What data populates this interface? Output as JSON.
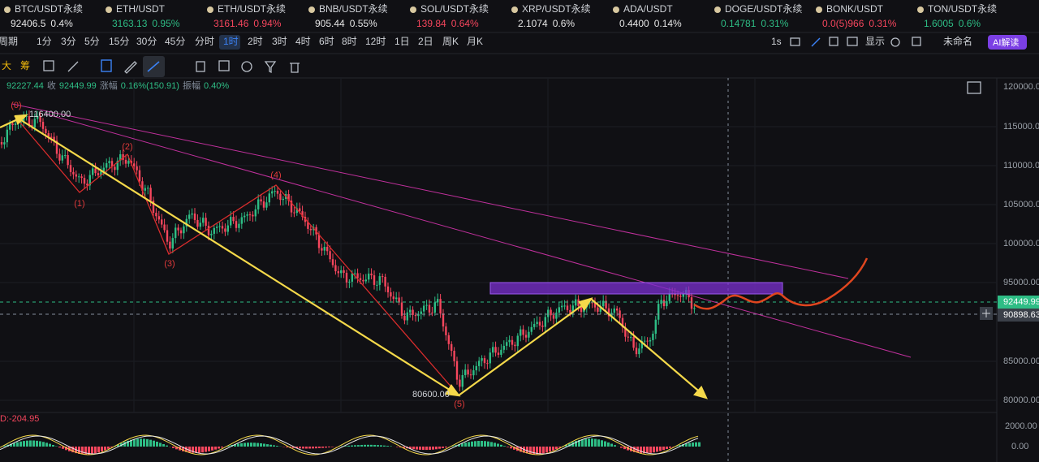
{
  "tickers": [
    {
      "symbol": "BTC/USDT永续",
      "price": "92406.5",
      "change": "0.4%",
      "color": "#e6e6e6"
    },
    {
      "symbol": "ETH/USDT",
      "price": "3163.13",
      "change": "0.95%",
      "color": "#2ebd85"
    },
    {
      "symbol": "ETH/USDT永续",
      "price": "3161.46",
      "change": "0.94%",
      "color": "#f6465d"
    },
    {
      "symbol": "BNB/USDT永续",
      "price": "905.44",
      "change": "0.55%",
      "color": "#e6e6e6"
    },
    {
      "symbol": "SOL/USDT永续",
      "price": "139.84",
      "change": "0.64%",
      "color": "#f6465d"
    },
    {
      "symbol": "XRP/USDT永续",
      "price": "2.1074",
      "change": "0.6%",
      "color": "#e6e6e6"
    },
    {
      "symbol": "ADA/USDT",
      "price": "0.4400",
      "change": "0.14%",
      "color": "#e6e6e6"
    },
    {
      "symbol": "DOGE/USDT永续",
      "price": "0.14781",
      "change": "0.31%",
      "color": "#2ebd85"
    },
    {
      "symbol": "BONK/USDT",
      "price": "0.0(5)966",
      "change": "0.31%",
      "color": "#f6465d"
    },
    {
      "symbol": "TON/USDT永续",
      "price": "1.6005",
      "change": "0.6%",
      "color": "#2ebd85"
    }
  ],
  "timeframes": [
    "周期",
    "1分",
    "3分",
    "5分",
    "15分",
    "30分",
    "45分",
    "分时",
    "1时",
    "2时",
    "3时",
    "4时",
    "6时",
    "8时",
    "12时",
    "1日",
    "2日",
    "周K",
    "月K"
  ],
  "toolbar_right": {
    "interval": "1s",
    "display": "显示",
    "layout": "未命名",
    "ai": "AI解读"
  },
  "drawing_tools": [
    "大",
    "筹"
  ],
  "info_line": [
    {
      "text": "92227.44",
      "color": "#2ebd85"
    },
    {
      "text": "收",
      "color": "#848e9c"
    },
    {
      "text": "92449.99",
      "color": "#2ebd85"
    },
    {
      "text": "涨幅",
      "color": "#848e9c"
    },
    {
      "text": "0.16%(150.91)",
      "color": "#2ebd85"
    },
    {
      "text": "振幅",
      "color": "#848e9c"
    },
    {
      "text": "0.40%",
      "color": "#2ebd85"
    }
  ],
  "price_axis": [
    "120000.00",
    "115000.00",
    "110000.00",
    "105000.00",
    "100000.00",
    "95000.00",
    "85000.00",
    "80000.00"
  ],
  "price_tags": [
    "92449.99",
    "90898.63"
  ],
  "annotations": {
    "high": "116400.00",
    "low": "80600.00",
    "waves": [
      "(0)",
      "(1)",
      "(2)",
      "(3)",
      "(4)",
      "(5)"
    ]
  },
  "indicator": {
    "label": "D:-204.95",
    "axis": [
      "2000.00",
      "0.00"
    ]
  }
}
